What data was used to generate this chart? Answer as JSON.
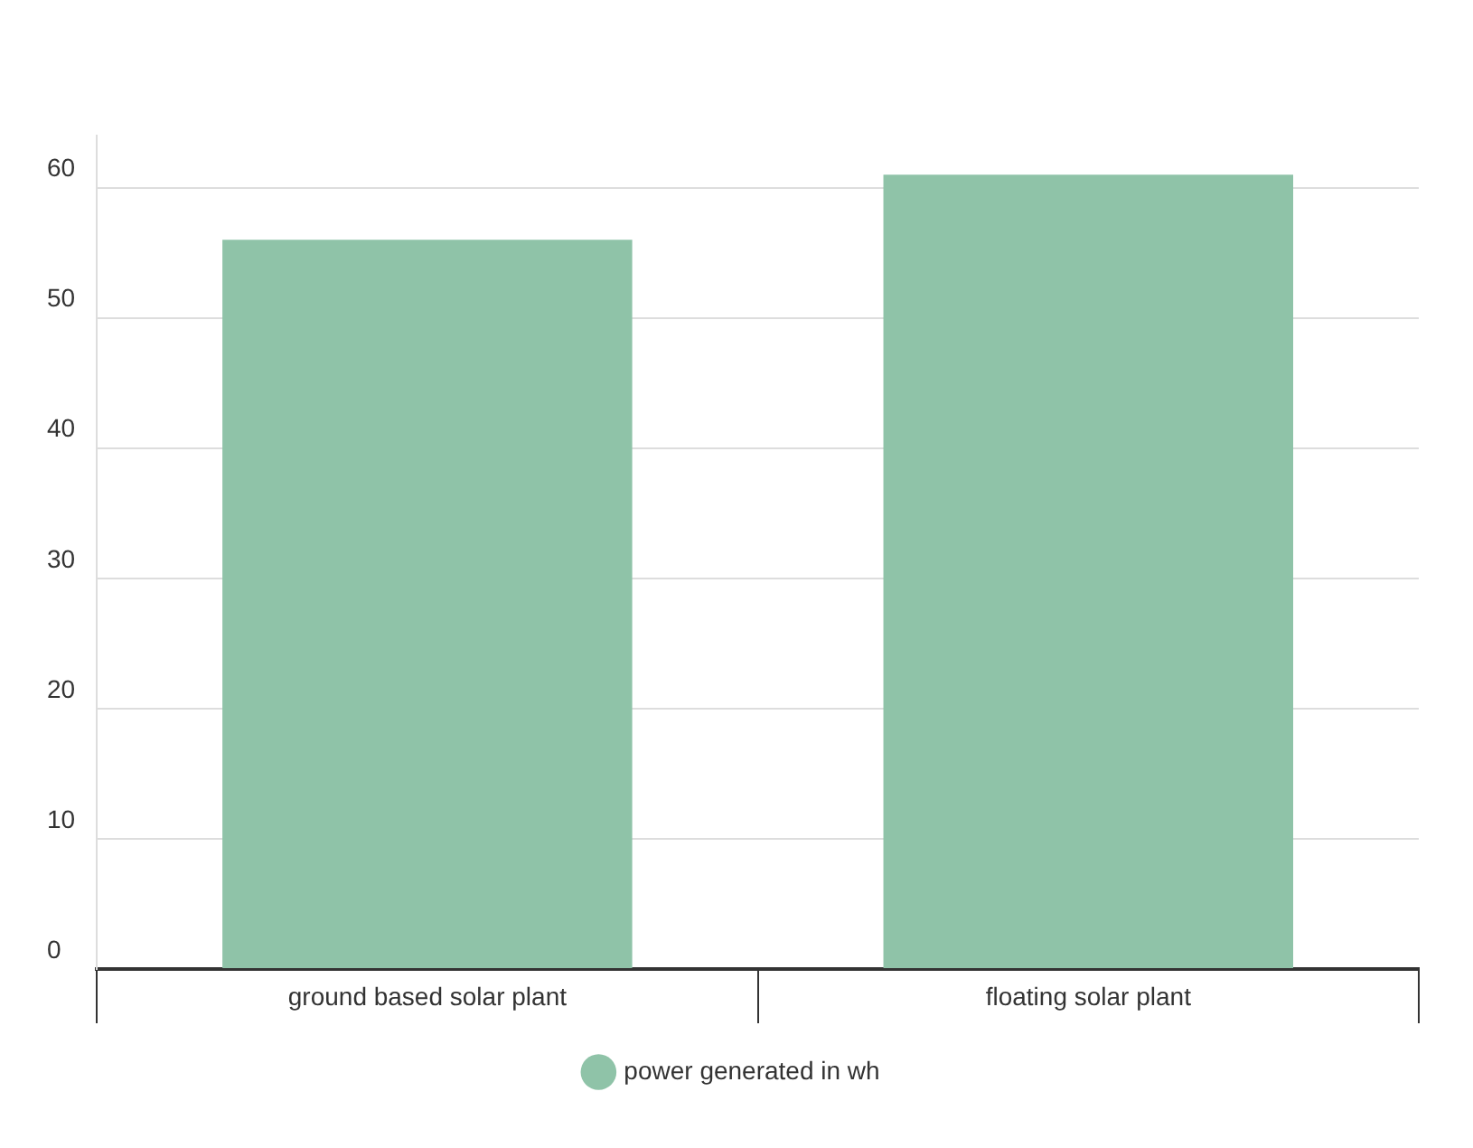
{
  "chart_data": {
    "type": "bar",
    "categories": [
      "ground based solar plant",
      "floating solar plant"
    ],
    "series": [
      {
        "name": "power generated in wh",
        "color": "#8fc3a8",
        "values": [
          56,
          61
        ]
      }
    ],
    "ylim": [
      0,
      64
    ],
    "yticks": [
      0,
      10,
      20,
      30,
      40,
      50,
      60
    ],
    "grid": "y",
    "legend": "bottom"
  }
}
